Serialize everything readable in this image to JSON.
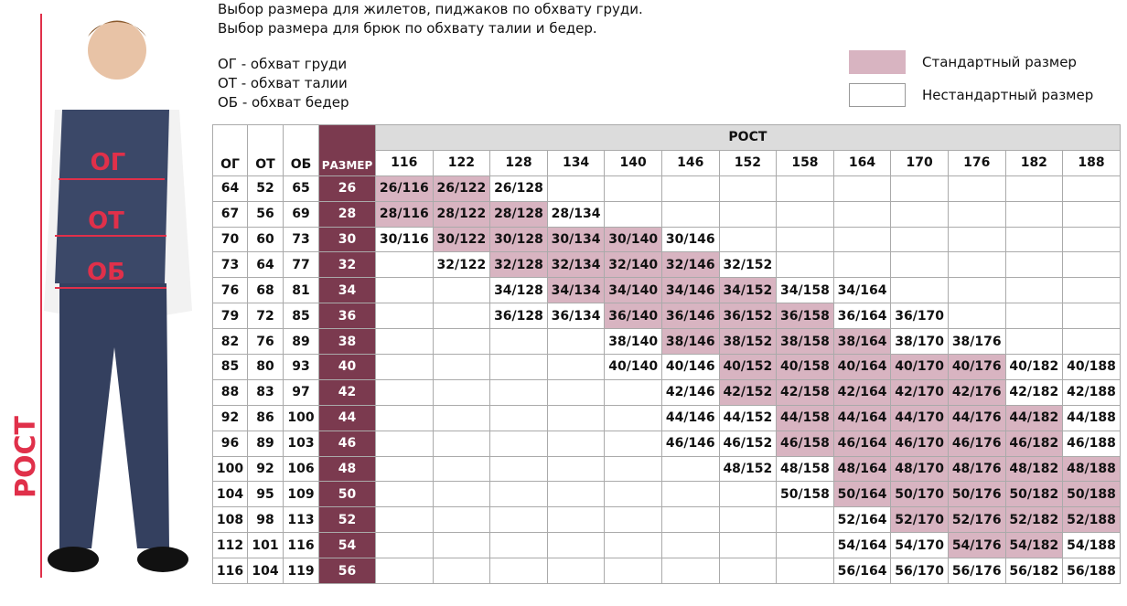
{
  "header": {
    "lines": [
      "Выбор размера для жилетов, пиджаков по обхвату груди.",
      "Выбор размера для брюк по обхвату талии и бедер."
    ],
    "abbreviations": [
      "ОГ - обхват груди",
      "ОТ - обхват талии",
      "ОБ - обхват бедер"
    ]
  },
  "legend": {
    "standard": {
      "label": "Стандартный размер",
      "color": "#d8b4c1"
    },
    "nonstandard": {
      "label": "Нестандартный размер",
      "color": "#ffffff"
    }
  },
  "figure": {
    "labels": [
      "ОГ",
      "ОТ",
      "ОБ"
    ],
    "height_label": "РОСТ"
  },
  "table": {
    "columns": [
      "ОГ",
      "ОТ",
      "ОБ",
      "РАЗМЕР"
    ],
    "height_header": "РОСТ",
    "heights": [
      "116",
      "122",
      "128",
      "134",
      "140",
      "146",
      "152",
      "158",
      "164",
      "170",
      "176",
      "182",
      "188"
    ],
    "size_color": "#7b3a4f",
    "header_color": "#dcdcdc",
    "rows": [
      {
        "og": "64",
        "ot": "52",
        "ob": "65",
        "size": "26",
        "standard": [
          0,
          1
        ],
        "cells": [
          "26/116",
          "26/122",
          "26/128",
          null,
          null,
          null,
          null,
          null,
          null,
          null,
          null,
          null,
          null
        ]
      },
      {
        "og": "67",
        "ot": "56",
        "ob": "69",
        "size": "28",
        "standard": [
          0,
          2
        ],
        "cells": [
          "28/116",
          "28/122",
          "28/128",
          "28/134",
          null,
          null,
          null,
          null,
          null,
          null,
          null,
          null,
          null
        ]
      },
      {
        "og": "70",
        "ot": "60",
        "ob": "73",
        "size": "30",
        "standard": [
          1,
          4
        ],
        "cells": [
          "30/116",
          "30/122",
          "30/128",
          "30/134",
          "30/140",
          "30/146",
          null,
          null,
          null,
          null,
          null,
          null,
          null
        ]
      },
      {
        "og": "73",
        "ot": "64",
        "ob": "77",
        "size": "32",
        "standard": [
          2,
          5
        ],
        "cells": [
          null,
          "32/122",
          "32/128",
          "32/134",
          "32/140",
          "32/146",
          "32/152",
          null,
          null,
          null,
          null,
          null,
          null
        ]
      },
      {
        "og": "76",
        "ot": "68",
        "ob": "81",
        "size": "34",
        "standard": [
          3,
          6
        ],
        "cells": [
          null,
          null,
          "34/128",
          "34/134",
          "34/140",
          "34/146",
          "34/152",
          "34/158",
          "34/164",
          null,
          null,
          null,
          null
        ]
      },
      {
        "og": "79",
        "ot": "72",
        "ob": "85",
        "size": "36",
        "standard": [
          4,
          7
        ],
        "cells": [
          null,
          null,
          "36/128",
          "36/134",
          "36/140",
          "36/146",
          "36/152",
          "36/158",
          "36/164",
          "36/170",
          null,
          null,
          null
        ]
      },
      {
        "og": "82",
        "ot": "76",
        "ob": "89",
        "size": "38",
        "standard": [
          5,
          8
        ],
        "cells": [
          null,
          null,
          null,
          null,
          "38/140",
          "38/146",
          "38/152",
          "38/158",
          "38/164",
          "38/170",
          "38/176",
          null,
          null
        ]
      },
      {
        "og": "85",
        "ot": "80",
        "ob": "93",
        "size": "40",
        "standard": [
          6,
          10
        ],
        "cells": [
          null,
          null,
          null,
          null,
          "40/140",
          "40/146",
          "40/152",
          "40/158",
          "40/164",
          "40/170",
          "40/176",
          "40/182",
          "40/188"
        ]
      },
      {
        "og": "88",
        "ot": "83",
        "ob": "97",
        "size": "42",
        "standard": [
          6,
          10
        ],
        "cells": [
          null,
          null,
          null,
          null,
          null,
          "42/146",
          "42/152",
          "42/158",
          "42/164",
          "42/170",
          "42/176",
          "42/182",
          "42/188"
        ]
      },
      {
        "og": "92",
        "ot": "86",
        "ob": "100",
        "size": "44",
        "standard": [
          7,
          11
        ],
        "cells": [
          null,
          null,
          null,
          null,
          null,
          "44/146",
          "44/152",
          "44/158",
          "44/164",
          "44/170",
          "44/176",
          "44/182",
          "44/188"
        ]
      },
      {
        "og": "96",
        "ot": "89",
        "ob": "103",
        "size": "46",
        "standard": [
          7,
          11
        ],
        "cells": [
          null,
          null,
          null,
          null,
          null,
          "46/146",
          "46/152",
          "46/158",
          "46/164",
          "46/170",
          "46/176",
          "46/182",
          "46/188"
        ]
      },
      {
        "og": "100",
        "ot": "92",
        "ob": "106",
        "size": "48",
        "standard": [
          8,
          12
        ],
        "cells": [
          null,
          null,
          null,
          null,
          null,
          null,
          "48/152",
          "48/158",
          "48/164",
          "48/170",
          "48/176",
          "48/182",
          "48/188"
        ]
      },
      {
        "og": "104",
        "ot": "95",
        "ob": "109",
        "size": "50",
        "standard": [
          8,
          12
        ],
        "cells": [
          null,
          null,
          null,
          null,
          null,
          null,
          null,
          "50/158",
          "50/164",
          "50/170",
          "50/176",
          "50/182",
          "50/188"
        ]
      },
      {
        "og": "108",
        "ot": "98",
        "ob": "113",
        "size": "52",
        "standard": [
          9,
          12
        ],
        "cells": [
          null,
          null,
          null,
          null,
          null,
          null,
          null,
          null,
          "52/164",
          "52/170",
          "52/176",
          "52/182",
          "52/188"
        ]
      },
      {
        "og": "112",
        "ot": "101",
        "ob": "116",
        "size": "54",
        "standard": [
          10,
          11
        ],
        "cells": [
          null,
          null,
          null,
          null,
          null,
          null,
          null,
          null,
          "54/164",
          "54/170",
          "54/176",
          "54/182",
          "54/188"
        ]
      },
      {
        "og": "116",
        "ot": "104",
        "ob": "119",
        "size": "56",
        "standard": null,
        "cells": [
          null,
          null,
          null,
          null,
          null,
          null,
          null,
          null,
          "56/164",
          "56/170",
          "56/176",
          "56/182",
          "56/188"
        ]
      }
    ]
  }
}
